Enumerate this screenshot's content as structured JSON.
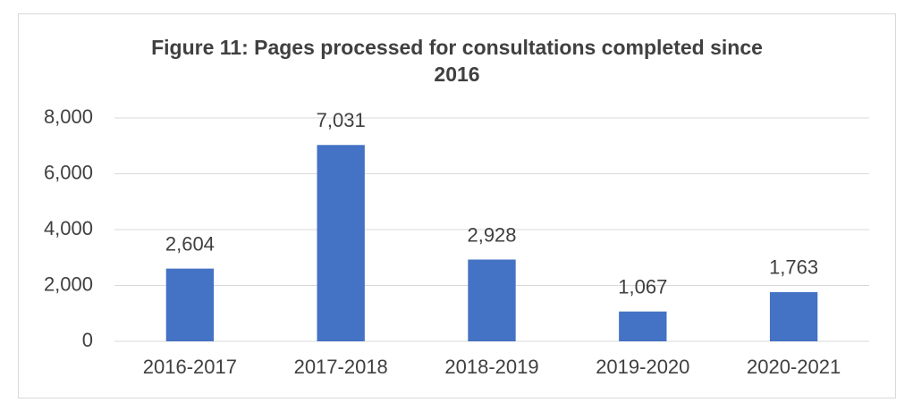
{
  "chart_data": {
    "type": "bar",
    "title": "Figure 11: Pages processed for consultations completed since 2016",
    "categories": [
      "2016-2017",
      "2017-2018",
      "2018-2019",
      "2019-2020",
      "2020-2021"
    ],
    "values": [
      2604,
      7031,
      2928,
      1067,
      1763
    ],
    "value_labels": [
      "2,604",
      "7,031",
      "2,928",
      "1,067",
      "1,763"
    ],
    "color": "#4472c4",
    "ylim": [
      0,
      8000
    ],
    "yticks": [
      0,
      {
        "value": 2000,
        "label": "2,000"
      },
      {
        "value": 4000,
        "label": "4,000"
      },
      {
        "value": 6000,
        "label": "6,000"
      },
      {
        "value": 8000,
        "label": "8,000"
      }
    ],
    "grid": true
  }
}
